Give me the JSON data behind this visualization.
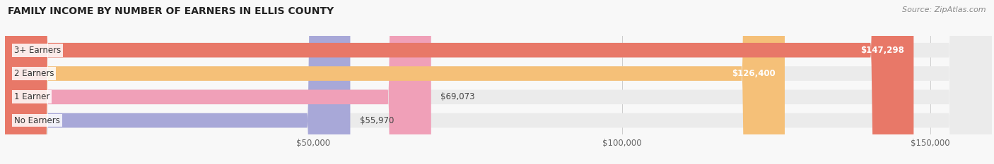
{
  "title": "FAMILY INCOME BY NUMBER OF EARNERS IN ELLIS COUNTY",
  "source": "Source: ZipAtlas.com",
  "categories": [
    "No Earners",
    "1 Earner",
    "2 Earners",
    "3+ Earners"
  ],
  "values": [
    55970,
    69073,
    126400,
    147298
  ],
  "bar_colors": [
    "#a8a8d8",
    "#f0a0b8",
    "#f5c078",
    "#e87868"
  ],
  "bar_bg_color": "#ebebeb",
  "value_labels": [
    "$55,970",
    "$69,073",
    "$126,400",
    "$147,298"
  ],
  "xlim": [
    0,
    160000
  ],
  "xticks": [
    50000,
    100000,
    150000
  ],
  "xtick_labels": [
    "$50,000",
    "$100,000",
    "$150,000"
  ],
  "figsize": [
    14.06,
    2.33
  ],
  "dpi": 100,
  "background_color": "#f8f8f8"
}
